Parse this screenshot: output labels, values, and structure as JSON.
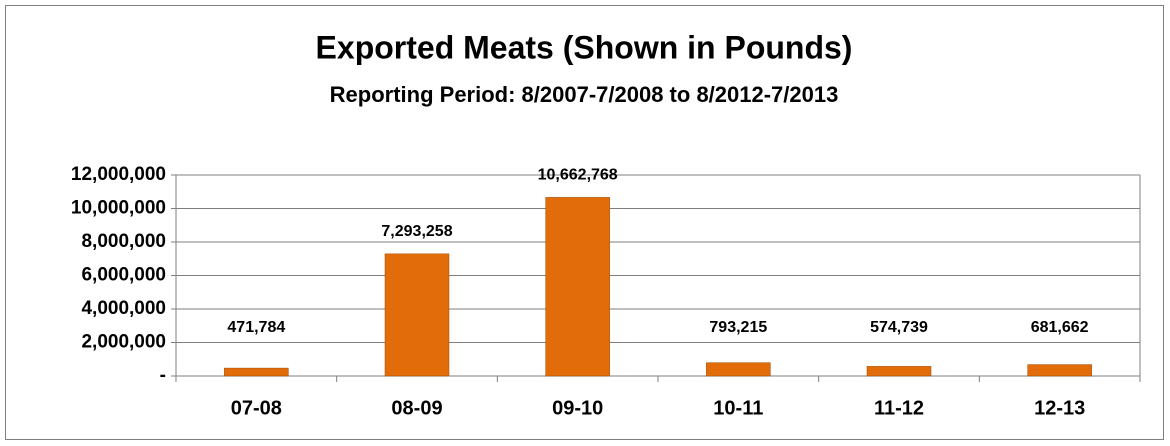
{
  "chart_data": {
    "type": "bar",
    "title": "Exported Meats (Shown in Pounds)",
    "subtitle": "Reporting Period:  8/2007-7/2008 to 8/2012-7/2013",
    "categories": [
      "07-08",
      "08-09",
      "09-10",
      "10-11",
      "11-12",
      "12-13"
    ],
    "values": [
      471784,
      7293258,
      10662768,
      793215,
      574739,
      681662
    ],
    "value_labels": [
      "471,784",
      "7,293,258",
      "10,662,768",
      "793,215",
      "574,739",
      "681,662"
    ],
    "color": "#e36c0a",
    "ylim": [
      0,
      12000000
    ],
    "yticks": [
      {
        "value": 0,
        "label": "-"
      },
      {
        "value": 2000000,
        "label": "2,000,000"
      },
      {
        "value": 4000000,
        "label": "4,000,000"
      },
      {
        "value": 6000000,
        "label": "6,000,000"
      },
      {
        "value": 8000000,
        "label": "8,000,000"
      },
      {
        "value": 10000000,
        "label": "10,000,000"
      },
      {
        "value": 12000000,
        "label": "12,000,000"
      }
    ],
    "grid": true
  }
}
